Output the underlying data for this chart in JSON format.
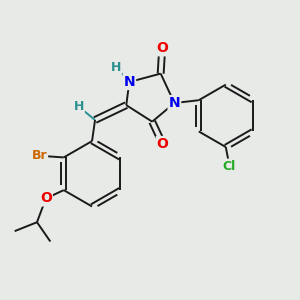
{
  "background_color": "#e8eae8",
  "bond_color": "#1a1a1a",
  "atom_colors": {
    "N": "#0000ee",
    "O": "#ee0000",
    "Br": "#cc6600",
    "Cl": "#22aa22",
    "H": "#2a9090",
    "C": "#1a1a1a"
  },
  "figsize": [
    3.0,
    3.0
  ],
  "dpi": 100,
  "xlim": [
    0,
    10
  ],
  "ylim": [
    0,
    10
  ]
}
